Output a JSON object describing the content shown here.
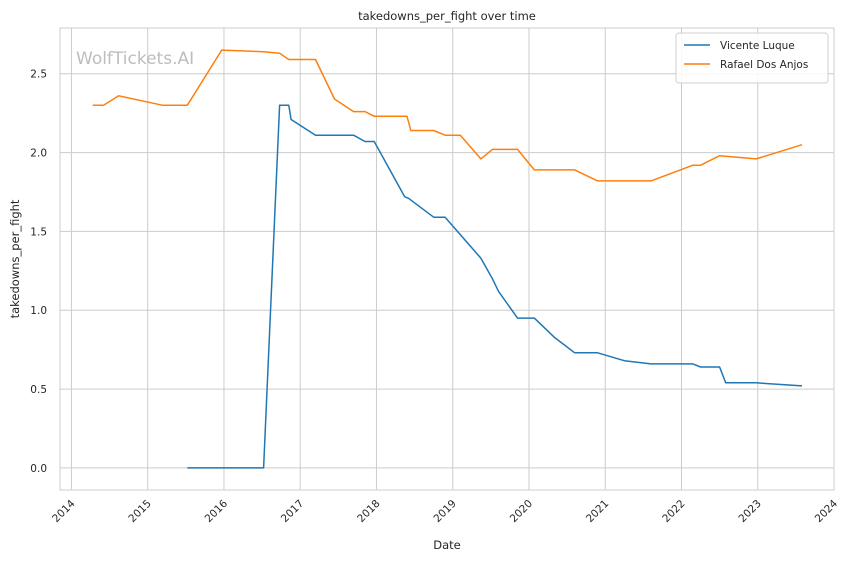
{
  "chart_data": {
    "type": "line",
    "title": "takedowns_per_fight over time",
    "xlabel": "Date",
    "ylabel": "takedowns_per_fight",
    "watermark": "WolfTickets.AI",
    "xlim": [
      2013.85,
      2024.0
    ],
    "ylim": [
      -0.14,
      2.79
    ],
    "x_ticks": [
      2014,
      2015,
      2016,
      2017,
      2018,
      2019,
      2020,
      2021,
      2022,
      2023,
      2024
    ],
    "x_tick_labels": [
      "2014",
      "2015",
      "2016",
      "2017",
      "2018",
      "2019",
      "2020",
      "2021",
      "2022",
      "2023",
      "2024"
    ],
    "y_ticks": [
      0.0,
      0.5,
      1.0,
      1.5,
      2.0,
      2.5
    ],
    "y_tick_labels": [
      "0.0",
      "0.5",
      "1.0",
      "1.5",
      "2.0",
      "2.5"
    ],
    "grid": true,
    "legend_position": "top-right",
    "series": [
      {
        "name": "Vicente Luque",
        "color": "#1f77b4",
        "x": [
          2015.52,
          2016.52,
          2016.73,
          2016.85,
          2016.88,
          2017.2,
          2017.7,
          2017.85,
          2017.97,
          2018.37,
          2018.42,
          2018.75,
          2018.9,
          2019.1,
          2019.37,
          2019.52,
          2019.6,
          2019.85,
          2020.07,
          2020.33,
          2020.6,
          2020.9,
          2021.25,
          2021.6,
          2022.15,
          2022.25,
          2022.5,
          2022.58,
          2022.98,
          2023.58
        ],
        "y": [
          0.0,
          0.0,
          2.3,
          2.3,
          2.21,
          2.11,
          2.11,
          2.07,
          2.07,
          1.72,
          1.71,
          1.59,
          1.59,
          1.48,
          1.33,
          1.2,
          1.12,
          0.95,
          0.95,
          0.83,
          0.73,
          0.73,
          0.68,
          0.66,
          0.66,
          0.64,
          0.64,
          0.54,
          0.54,
          0.52
        ]
      },
      {
        "name": "Rafael Dos Anjos",
        "color": "#ff7f0e",
        "x": [
          2014.28,
          2014.42,
          2014.62,
          2015.2,
          2015.52,
          2015.97,
          2016.52,
          2016.73,
          2016.85,
          2017.2,
          2017.45,
          2017.7,
          2017.85,
          2017.97,
          2018.4,
          2018.45,
          2018.75,
          2018.9,
          2019.1,
          2019.37,
          2019.52,
          2019.85,
          2020.07,
          2020.6,
          2020.9,
          2021.6,
          2022.15,
          2022.25,
          2022.5,
          2022.98,
          2023.58
        ],
        "y": [
          2.3,
          2.3,
          2.36,
          2.3,
          2.3,
          2.65,
          2.64,
          2.63,
          2.59,
          2.59,
          2.34,
          2.26,
          2.26,
          2.23,
          2.23,
          2.14,
          2.14,
          2.11,
          2.11,
          1.96,
          2.02,
          2.02,
          1.89,
          1.89,
          1.82,
          1.82,
          1.92,
          1.92,
          1.98,
          1.96,
          2.05
        ]
      }
    ]
  }
}
